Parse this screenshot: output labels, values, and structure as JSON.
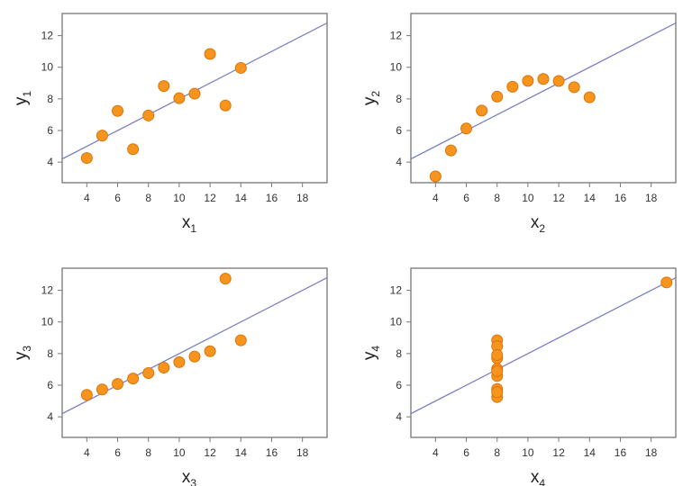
{
  "chart_data": [
    {
      "type": "scatter",
      "xlabel": "x",
      "xlabel_sub": "1",
      "ylabel": "y",
      "ylabel_sub": "1",
      "x": [
        10,
        8,
        13,
        9,
        11,
        14,
        6,
        4,
        12,
        7,
        5
      ],
      "y": [
        8.04,
        6.95,
        7.58,
        8.81,
        8.33,
        9.96,
        7.24,
        4.26,
        10.84,
        4.82,
        5.68
      ],
      "fit_line": {
        "intercept": 3.0,
        "slope": 0.5
      },
      "xlim": [
        2.4,
        19.6
      ],
      "ylim": [
        2.7,
        13.4
      ],
      "xticks": [
        4,
        6,
        8,
        10,
        12,
        14,
        16,
        18
      ],
      "yticks": [
        4,
        6,
        8,
        10,
        12
      ],
      "grid": false
    },
    {
      "type": "scatter",
      "xlabel": "x",
      "xlabel_sub": "2",
      "ylabel": "y",
      "ylabel_sub": "2",
      "x": [
        10,
        8,
        13,
        9,
        11,
        14,
        6,
        4,
        12,
        7,
        5
      ],
      "y": [
        9.14,
        8.14,
        8.74,
        8.77,
        9.26,
        8.1,
        6.13,
        3.1,
        9.13,
        7.26,
        4.74
      ],
      "fit_line": {
        "intercept": 3.0,
        "slope": 0.5
      },
      "xlim": [
        2.4,
        19.6
      ],
      "ylim": [
        2.7,
        13.4
      ],
      "xticks": [
        4,
        6,
        8,
        10,
        12,
        14,
        16,
        18
      ],
      "yticks": [
        4,
        6,
        8,
        10,
        12
      ],
      "grid": false
    },
    {
      "type": "scatter",
      "xlabel": "x",
      "xlabel_sub": "3",
      "ylabel": "y",
      "ylabel_sub": "3",
      "x": [
        10,
        8,
        13,
        9,
        11,
        14,
        6,
        4,
        12,
        7,
        5
      ],
      "y": [
        7.46,
        6.77,
        12.74,
        7.11,
        7.81,
        8.84,
        6.08,
        5.39,
        8.15,
        6.42,
        5.73
      ],
      "fit_line": {
        "intercept": 3.0,
        "slope": 0.5
      },
      "xlim": [
        2.4,
        19.6
      ],
      "ylim": [
        2.7,
        13.4
      ],
      "xticks": [
        4,
        6,
        8,
        10,
        12,
        14,
        16,
        18
      ],
      "yticks": [
        4,
        6,
        8,
        10,
        12
      ],
      "grid": false
    },
    {
      "type": "scatter",
      "xlabel": "x",
      "xlabel_sub": "4",
      "ylabel": "y",
      "ylabel_sub": "4",
      "x": [
        8,
        8,
        8,
        8,
        8,
        8,
        8,
        19,
        8,
        8,
        8
      ],
      "y": [
        6.58,
        5.76,
        7.71,
        8.84,
        8.47,
        7.04,
        5.25,
        12.5,
        5.56,
        7.91,
        6.89
      ],
      "fit_line": {
        "intercept": 3.0,
        "slope": 0.5
      },
      "xlim": [
        2.4,
        19.6
      ],
      "ylim": [
        2.7,
        13.4
      ],
      "xticks": [
        4,
        6,
        8,
        10,
        12,
        14,
        16,
        18
      ],
      "yticks": [
        4,
        6,
        8,
        10,
        12
      ],
      "grid": false
    }
  ],
  "colors": {
    "point_fill": "#f7941d",
    "point_stroke": "#d9750a",
    "line": "#7b7fc4",
    "frame": "#777777"
  }
}
